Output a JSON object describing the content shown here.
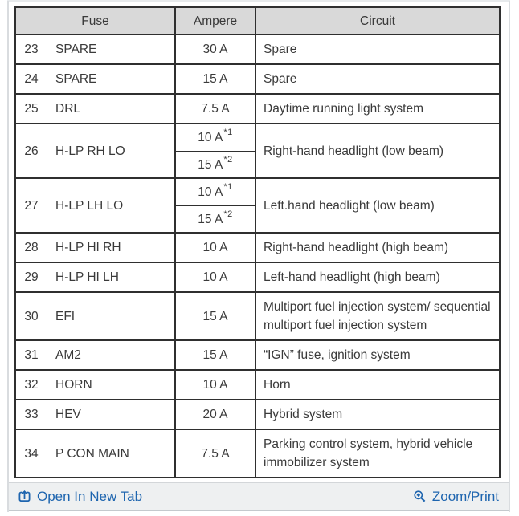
{
  "table": {
    "headers": {
      "fuse": "Fuse",
      "ampere": "Ampere",
      "circuit": "Circuit"
    },
    "rows": [
      {
        "no": "23",
        "fuse": "SPARE",
        "amps": [
          {
            "value": "30 A",
            "sup": ""
          }
        ],
        "circuit": "Spare"
      },
      {
        "no": "24",
        "fuse": "SPARE",
        "amps": [
          {
            "value": "15 A",
            "sup": ""
          }
        ],
        "circuit": "Spare"
      },
      {
        "no": "25",
        "fuse": "DRL",
        "amps": [
          {
            "value": "7.5 A",
            "sup": ""
          }
        ],
        "circuit": "Daytime running light system"
      },
      {
        "no": "26",
        "fuse": "H-LP RH LO",
        "amps": [
          {
            "value": "10 A",
            "sup": "*1"
          },
          {
            "value": "15 A",
            "sup": "*2"
          }
        ],
        "circuit": "Right-hand headlight (low beam)"
      },
      {
        "no": "27",
        "fuse": "H-LP LH LO",
        "amps": [
          {
            "value": "10 A",
            "sup": "*1"
          },
          {
            "value": "15 A",
            "sup": "*2"
          }
        ],
        "circuit": "Left.hand headlight (low beam)"
      },
      {
        "no": "28",
        "fuse": "H-LP HI RH",
        "amps": [
          {
            "value": "10 A",
            "sup": ""
          }
        ],
        "circuit": "Right-hand headlight (high beam)"
      },
      {
        "no": "29",
        "fuse": "H-LP HI LH",
        "amps": [
          {
            "value": "10 A",
            "sup": ""
          }
        ],
        "circuit": "Left-hand headlight (high beam)"
      },
      {
        "no": "30",
        "fuse": "EFI",
        "amps": [
          {
            "value": "15 A",
            "sup": ""
          }
        ],
        "circuit": "Multiport fuel injection system/ sequential multiport fuel injection system"
      },
      {
        "no": "31",
        "fuse": "AM2",
        "amps": [
          {
            "value": "15 A",
            "sup": ""
          }
        ],
        "circuit": "“IGN” fuse, ignition system"
      },
      {
        "no": "32",
        "fuse": "HORN",
        "amps": [
          {
            "value": "10 A",
            "sup": ""
          }
        ],
        "circuit": "Horn"
      },
      {
        "no": "33",
        "fuse": "HEV",
        "amps": [
          {
            "value": "20 A",
            "sup": ""
          }
        ],
        "circuit": "Hybrid system"
      },
      {
        "no": "34",
        "fuse": "P CON MAIN",
        "amps": [
          {
            "value": "7.5 A",
            "sup": ""
          }
        ],
        "circuit": "Parking control system, hybrid vehicle immobilizer system"
      }
    ]
  },
  "footer": {
    "open_in_new_tab": "Open In New Tab",
    "zoom_print": "Zoom/Print"
  },
  "colors": {
    "link_blue": "#1e65af",
    "header_bg": "#d9d9d9",
    "table_border": "#2f2f2f",
    "footer_bg": "#eef0f1"
  }
}
